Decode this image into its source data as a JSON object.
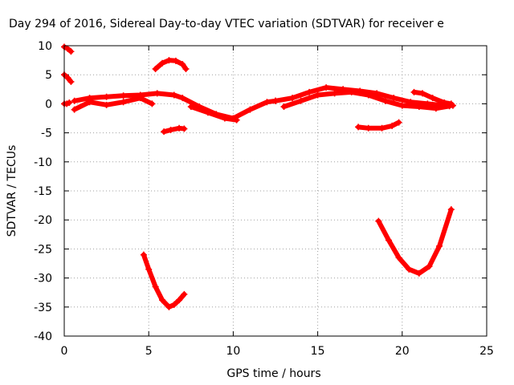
{
  "chart_data": {
    "type": "scatter",
    "title": "Day 294 of 2016, Sidereal Day-to-day VTEC variation (SDTVAR) for receiver e",
    "xlabel": "GPS time / hours",
    "ylabel": "SDTVAR / TECUs",
    "xlim": [
      0,
      25
    ],
    "ylim": [
      -40,
      10
    ],
    "xticks": [
      0,
      5,
      10,
      15,
      20,
      25
    ],
    "yticks": [
      10,
      5,
      0,
      -5,
      -10,
      -15,
      -20,
      -25,
      -30,
      -35,
      -40
    ],
    "grid": true,
    "marker_color": "#ff0000",
    "series": [
      {
        "name": "arc-0-top",
        "x": [
          0.0,
          0.2,
          0.4
        ],
        "y": [
          9.8,
          9.5,
          9.0
        ]
      },
      {
        "name": "arc-0-mid",
        "x": [
          0.0,
          0.2,
          0.4
        ],
        "y": [
          5.0,
          4.5,
          3.8
        ]
      },
      {
        "name": "arc-0-zero",
        "x": [
          0.0,
          0.15,
          0.3
        ],
        "y": [
          0.0,
          0.0,
          0.2
        ]
      },
      {
        "name": "arc-main-a",
        "x": [
          0.6,
          1.5,
          2.5,
          3.5,
          4.5,
          5.5,
          6.5,
          7.0,
          8.0,
          9.0,
          10.0,
          11.0,
          12.0,
          12.5
        ],
        "y": [
          0.5,
          1.0,
          1.2,
          1.4,
          1.5,
          1.8,
          1.5,
          1.0,
          -0.5,
          -1.8,
          -2.5,
          -1.0,
          0.3,
          0.5
        ]
      },
      {
        "name": "arc-main-b",
        "x": [
          0.6,
          1.5,
          2.5,
          3.5,
          4.5,
          5.2
        ],
        "y": [
          -1.0,
          0.3,
          -0.2,
          0.3,
          1.0,
          0.0
        ]
      },
      {
        "name": "arc-main-c",
        "x": [
          7.5,
          8.5,
          9.5,
          10.2
        ],
        "y": [
          -0.5,
          -1.5,
          -2.5,
          -2.8
        ]
      },
      {
        "name": "arc-upper-6h",
        "x": [
          5.4,
          5.8,
          6.2,
          6.6,
          7.0,
          7.2
        ],
        "y": [
          6.0,
          7.0,
          7.5,
          7.4,
          6.8,
          6.0
        ]
      },
      {
        "name": "arc-lower-6h",
        "x": [
          5.9,
          6.3,
          6.8,
          7.1
        ],
        "y": [
          -4.8,
          -4.5,
          -4.2,
          -4.3
        ]
      },
      {
        "name": "arc-15h-a",
        "x": [
          12.5,
          13.5,
          14.5,
          15.5,
          16.5,
          17.5,
          18.5,
          19.5,
          20.5,
          21.5,
          22.5,
          23.0
        ],
        "y": [
          0.5,
          1.0,
          2.0,
          2.8,
          2.5,
          2.2,
          1.8,
          1.0,
          0.3,
          0.0,
          -0.3,
          -0.3
        ]
      },
      {
        "name": "arc-15h-b",
        "x": [
          13.0,
          14.0,
          15.0,
          16.0,
          17.0,
          18.0,
          19.0,
          20.0,
          21.0,
          22.0,
          22.8
        ],
        "y": [
          -0.5,
          0.5,
          1.5,
          1.8,
          2.0,
          1.5,
          0.5,
          -0.3,
          -0.5,
          -0.8,
          -0.4
        ]
      },
      {
        "name": "arc-21h",
        "x": [
          20.7,
          21.2,
          21.8,
          22.5,
          22.9
        ],
        "y": [
          2.0,
          1.8,
          1.0,
          0.2,
          0.0
        ]
      },
      {
        "name": "arc-neg4-18h",
        "x": [
          17.4,
          18.0,
          18.8,
          19.4,
          19.8
        ],
        "y": [
          -4.0,
          -4.2,
          -4.2,
          -3.8,
          -3.2
        ]
      },
      {
        "name": "arc-deep-6h",
        "x": [
          4.7,
          5.0,
          5.4,
          5.8,
          6.2,
          6.5,
          6.8,
          7.1
        ],
        "y": [
          -26.0,
          -28.5,
          -31.5,
          -33.8,
          -35.0,
          -34.6,
          -33.8,
          -32.8
        ]
      },
      {
        "name": "arc-deep-21h",
        "x": [
          18.6,
          19.2,
          19.8,
          20.4,
          21.0,
          21.6,
          22.2,
          22.9
        ],
        "y": [
          -20.2,
          -23.5,
          -26.5,
          -28.5,
          -29.2,
          -28.0,
          -24.5,
          -18.2
        ]
      }
    ]
  }
}
